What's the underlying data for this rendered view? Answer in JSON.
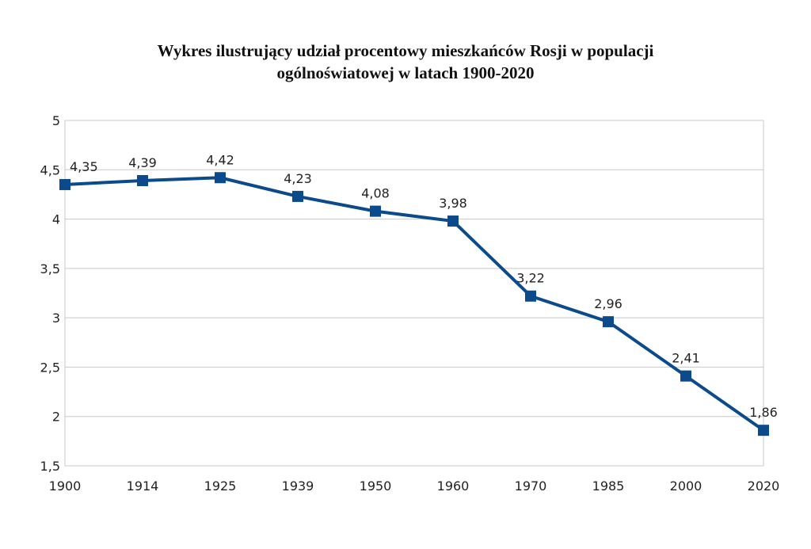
{
  "chart_data": {
    "type": "line",
    "title_lines": [
      "Wykres ilustrujący udział procentowy mieszkańców Rosji w populacji",
      "ogólnoświatowej w latach 1900-2020"
    ],
    "categories": [
      "1900",
      "1914",
      "1925",
      "1939",
      "1950",
      "1960",
      "1970",
      "1985",
      "2000",
      "2020"
    ],
    "series": [
      {
        "values": [
          4.35,
          4.39,
          4.42,
          4.23,
          4.08,
          3.98,
          3.22,
          2.96,
          2.41,
          1.86
        ]
      }
    ],
    "data_labels": [
      "4,35",
      "4,39",
      "4,42",
      "4,23",
      "4,08",
      "3,98",
      "3,22",
      "2,96",
      "2,41",
      "1,86"
    ],
    "yticks": [
      1.5,
      2,
      2.5,
      3,
      3.5,
      4,
      4.5,
      5
    ],
    "ytick_labels": [
      "1,5",
      "2",
      "2,5",
      "3",
      "3,5",
      "4",
      "4,5",
      "5"
    ],
    "ylim": [
      1.5,
      5
    ],
    "xlabel": "",
    "ylabel": "",
    "grid": true,
    "legend": "none",
    "line_color": "#0b4a8b",
    "marker": "square"
  }
}
